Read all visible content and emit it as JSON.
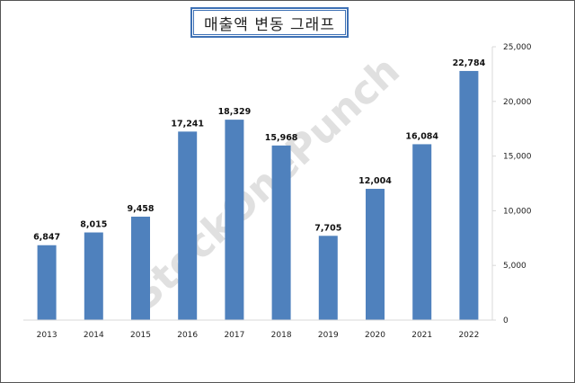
{
  "title": "매출액 변동 그래프",
  "watermark": "StockOnePunch",
  "colors": {
    "bar": "#4f81bd",
    "frame": "#555555",
    "title_border": "#3e71b5",
    "text": "#222222"
  },
  "chart_data": {
    "type": "bar",
    "categories": [
      "2013",
      "2014",
      "2015",
      "2016",
      "2017",
      "2018",
      "2019",
      "2020",
      "2021",
      "2022"
    ],
    "values": [
      6847,
      8015,
      9458,
      17241,
      18329,
      15968,
      7705,
      12004,
      16084,
      22784
    ],
    "value_labels": [
      "6,847",
      "8,015",
      "9,458",
      "17,241",
      "18,329",
      "15,968",
      "7,705",
      "12,004",
      "16,084",
      "22,784"
    ],
    "ylim": [
      0,
      25000
    ],
    "yticks": [
      0,
      5000,
      10000,
      15000,
      20000,
      25000
    ],
    "ytick_labels": [
      "0",
      "5,000",
      "10,000",
      "15,000",
      "20,000",
      "25,000"
    ],
    "y_axis_side": "right",
    "grid": false,
    "legend": "none"
  }
}
